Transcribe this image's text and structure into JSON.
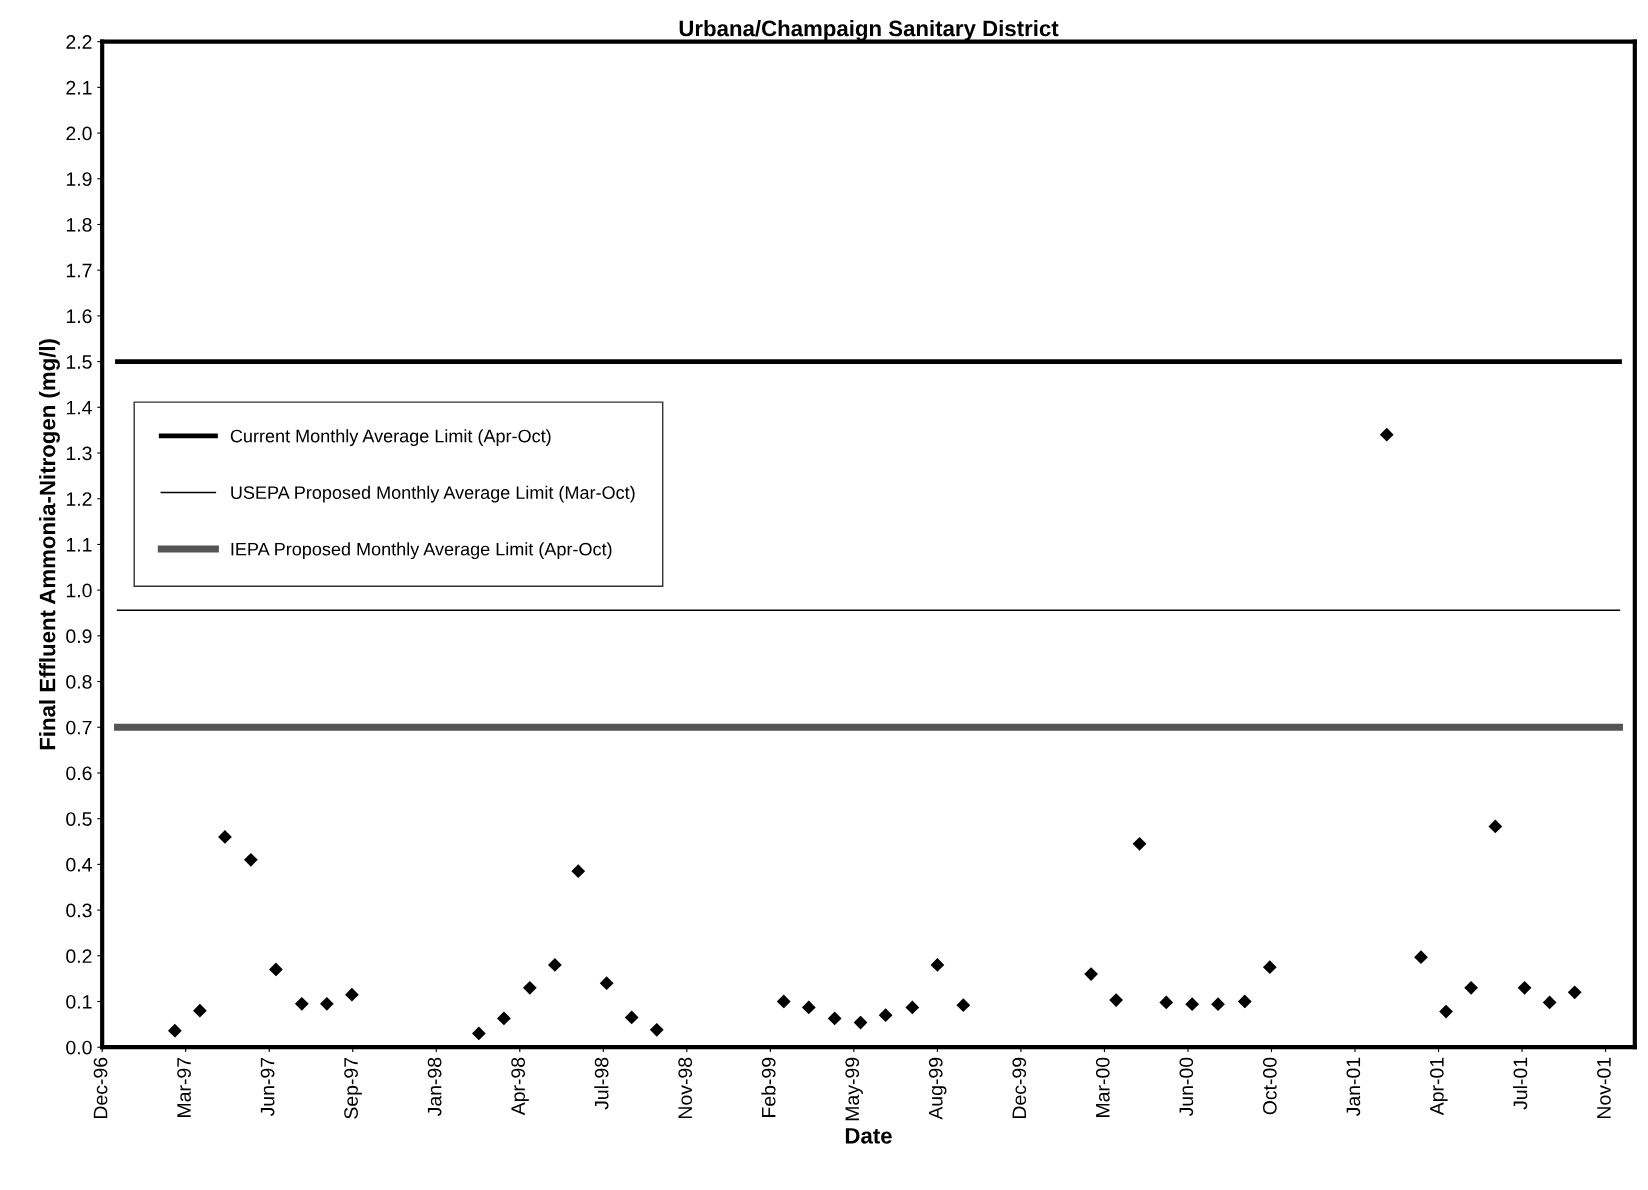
{
  "chart_data": {
    "type": "scatter",
    "title": "Urbana/Champaign Sanitary District",
    "xlabel": "Date",
    "ylabel": "Final Effluent Ammonia-Nitrogen (mg/l)",
    "x": [
      "1997-02-26",
      "1997-03-28",
      "1997-04-27",
      "1997-05-28",
      "1997-06-27",
      "1997-07-28",
      "1997-08-27",
      "1997-09-26",
      "1998-02-25",
      "1998-03-27",
      "1998-04-27",
      "1998-05-27",
      "1998-06-24",
      "1998-07-28",
      "1998-08-27",
      "1998-09-26",
      "1999-02-25",
      "1999-03-27",
      "1999-04-27",
      "1999-05-28",
      "1999-06-27",
      "1999-07-29",
      "1999-08-28",
      "1999-09-28",
      "2000-02-28",
      "2000-03-29",
      "2000-04-26",
      "2000-05-28",
      "2000-06-28",
      "2000-07-29",
      "2000-08-30",
      "2000-09-29",
      "2001-02-16",
      "2001-03-29",
      "2001-04-28",
      "2001-05-28",
      "2001-06-26",
      "2001-07-31",
      "2001-08-30",
      "2001-09-29"
    ],
    "series": [
      {
        "color": "#000000",
        "values": [
          0.036,
          0.08,
          0.46,
          0.41,
          0.17,
          0.095,
          0.095,
          0.115,
          0.03,
          0.063,
          0.13,
          0.18,
          0.385,
          0.14,
          0.065,
          0.038,
          0.1,
          0.087,
          0.063,
          0.054,
          0.07,
          0.087,
          0.18,
          0.092,
          0.16,
          0.103,
          0.445,
          0.098,
          0.094,
          0.094,
          0.1,
          0.175,
          1.34,
          0.197,
          0.078,
          0.13,
          0.483,
          0.13,
          0.098,
          0.12
        ]
      }
    ],
    "marker": "diamond",
    "ref_lines": [
      {
        "axis": "y",
        "value": 1.5,
        "label": "Current Monthly Average Limit (Apr-Oct)",
        "color": "#000000",
        "line_style": "solid"
      },
      {
        "axis": "y",
        "value": 0.956,
        "label": "USEPA Proposed Monthly Average Limit (Mar-Oct)",
        "color": "#000000",
        "line_style": "solid"
      },
      {
        "axis": "y",
        "value": 0.7,
        "label": "IEPA Proposed Monthly Average Limit (Apr-Oct)",
        "color": "#555555",
        "line_style": "solid"
      }
    ],
    "xlim": [
      "1996-12-01",
      "2001-12-10"
    ],
    "xticks": [
      {
        "value": "1996-12-01",
        "label": "Dec-96"
      },
      {
        "value": "1997-03-11",
        "label": "Mar-97"
      },
      {
        "value": "1997-06-19",
        "label": "Jun-97"
      },
      {
        "value": "1997-09-27",
        "label": "Sep-97"
      },
      {
        "value": "1998-01-05",
        "label": "Jan-98"
      },
      {
        "value": "1998-04-15",
        "label": "Apr-98"
      },
      {
        "value": "1998-07-24",
        "label": "Jul-98"
      },
      {
        "value": "1998-11-01",
        "label": "Nov-98"
      },
      {
        "value": "1999-02-09",
        "label": "Feb-99"
      },
      {
        "value": "1999-05-20",
        "label": "May-99"
      },
      {
        "value": "1999-08-28",
        "label": "Aug-99"
      },
      {
        "value": "1999-12-06",
        "label": "Dec-99"
      },
      {
        "value": "2000-03-15",
        "label": "Mar-00"
      },
      {
        "value": "2000-06-23",
        "label": "Jun-00"
      },
      {
        "value": "2000-10-01",
        "label": "Oct-00"
      },
      {
        "value": "2001-01-09",
        "label": "Jan-01"
      },
      {
        "value": "2001-04-19",
        "label": "Apr-01"
      },
      {
        "value": "2001-07-28",
        "label": "Jul-01"
      },
      {
        "value": "2001-11-05",
        "label": "Nov-01"
      }
    ],
    "ylim": [
      0,
      2.2
    ],
    "yticks": [
      {
        "value": 0,
        "label": "0.0"
      },
      {
        "value": 0.1,
        "label": "0.1"
      },
      {
        "value": 0.2,
        "label": "0.2"
      },
      {
        "value": 0.3,
        "label": "0.3"
      },
      {
        "value": 0.4,
        "label": "0.4"
      },
      {
        "value": 0.5,
        "label": "0.5"
      },
      {
        "value": 0.6,
        "label": "0.6"
      },
      {
        "value": 0.7,
        "label": "0.7"
      },
      {
        "value": 0.8,
        "label": "0.8"
      },
      {
        "value": 0.9,
        "label": "0.9"
      },
      {
        "value": 1.0,
        "label": "1.0"
      },
      {
        "value": 1.1,
        "label": "1.1"
      },
      {
        "value": 1.2,
        "label": "1.2"
      },
      {
        "value": 1.3,
        "label": "1.3"
      },
      {
        "value": 1.4,
        "label": "1.4"
      },
      {
        "value": 1.5,
        "label": "1.5"
      },
      {
        "value": 1.6,
        "label": "1.6"
      },
      {
        "value": 1.7,
        "label": "1.7"
      },
      {
        "value": 1.8,
        "label": "1.8"
      },
      {
        "value": 1.9,
        "label": "1.9"
      },
      {
        "value": 2.0,
        "label": "2.0"
      },
      {
        "value": 2.1,
        "label": "2.1"
      },
      {
        "value": 2.2,
        "label": "2.2"
      }
    ],
    "grid": false,
    "legend": "center left"
  }
}
